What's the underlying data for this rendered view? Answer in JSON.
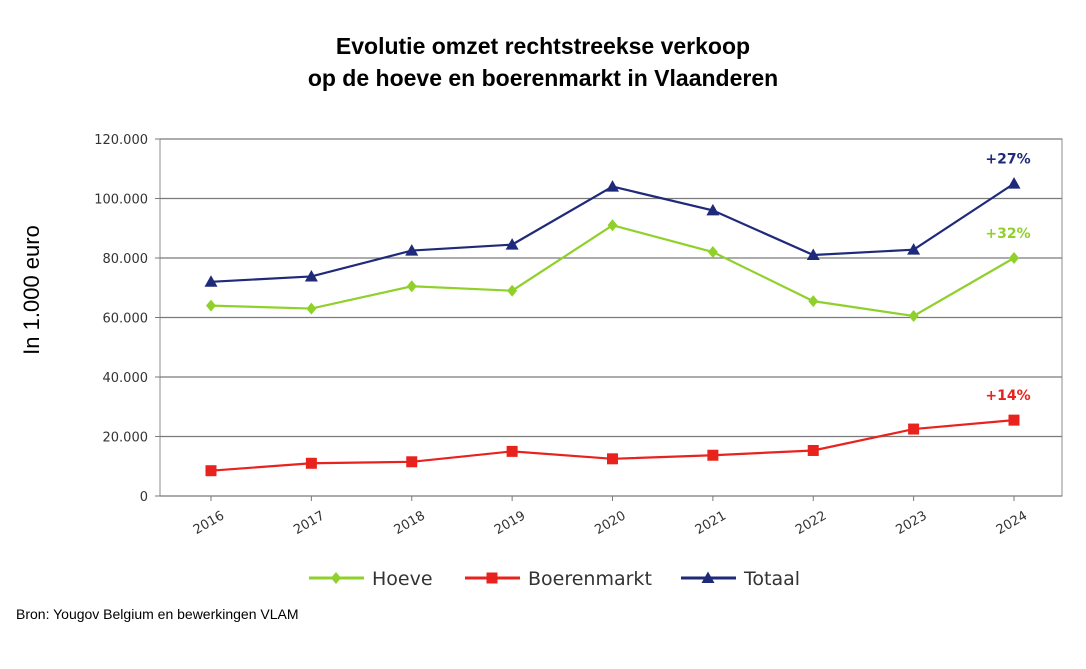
{
  "title_line1": "Evolutie omzet rechtstreekse verkoop",
  "title_line2": "op de hoeve en boerenmarkt in Vlaanderen",
  "source": "Bron: Yougov Belgium en bewerkingen VLAM",
  "chart_data": {
    "type": "line",
    "ylabel": "In 1.000 euro",
    "xlabel": "",
    "ylim": [
      0,
      120000
    ],
    "yticks": [
      0,
      20000,
      40000,
      60000,
      80000,
      100000,
      120000
    ],
    "ytick_labels": [
      "0",
      "20.000",
      "40.000",
      "60.000",
      "80.000",
      "100.000",
      "120.000"
    ],
    "categories": [
      "2016",
      "2017",
      "2018",
      "2019",
      "2020",
      "2021",
      "2022",
      "2023",
      "2024"
    ],
    "grid": "horizontal",
    "legend_placement": "bottom",
    "series": [
      {
        "name": "Hoeve",
        "color": "#8fd12a",
        "marker": "diamond",
        "values": [
          64000,
          63000,
          70500,
          69000,
          91000,
          82000,
          65500,
          60500,
          80000
        ],
        "end_label": "+32%"
      },
      {
        "name": "Boerenmarkt",
        "color": "#e8231e",
        "marker": "square",
        "values": [
          8500,
          11000,
          11500,
          15000,
          12500,
          13700,
          15300,
          22500,
          25500
        ],
        "end_label": "+14%"
      },
      {
        "name": "Totaal",
        "color": "#1f2a7a",
        "marker": "triangle",
        "values": [
          72000,
          73800,
          82500,
          84500,
          104000,
          96000,
          81000,
          82800,
          105000
        ],
        "end_label": "+27%"
      }
    ]
  }
}
